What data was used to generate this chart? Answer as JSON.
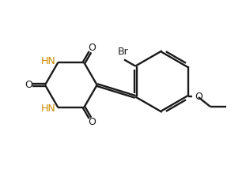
{
  "bg_color": "#ffffff",
  "line_color": "#1a1a1a",
  "hn_color": "#cc8800",
  "lw": 1.7,
  "dbo": 0.055,
  "fs": 9.0,
  "fig_w": 3.11,
  "fig_h": 2.24,
  "dpi": 100,
  "xlim": [
    0.0,
    10.0
  ],
  "ylim": [
    0.3,
    7.8
  ]
}
